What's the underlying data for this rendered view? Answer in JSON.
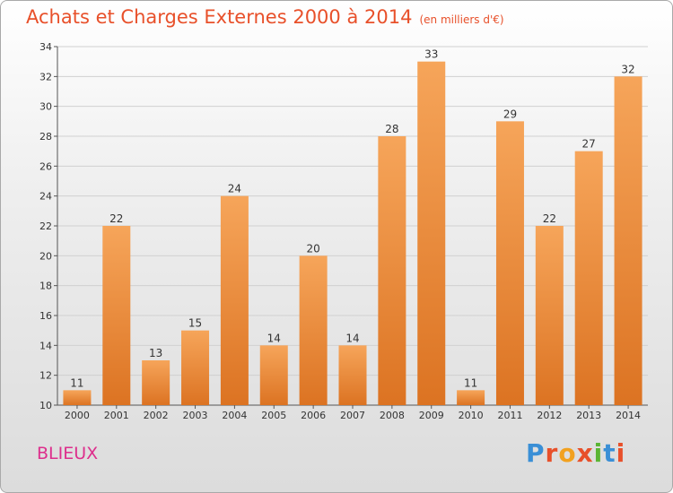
{
  "header": {
    "title": "Achats et Charges Externes 2000 à 2014",
    "unit": "(en milliers d'€)"
  },
  "footer": {
    "town": "BLIEUX",
    "brand": "Proxiti"
  },
  "colors": {
    "title": "#e8502a",
    "town": "#dd2e8c",
    "bar_top": "#f6a55a",
    "bar_bottom": "#dc7322"
  },
  "chart_data": {
    "type": "bar",
    "title": "Achats et Charges Externes 2000 à 2014",
    "subtitle": "(en milliers d'€)",
    "categories": [
      "2000",
      "2001",
      "2002",
      "2003",
      "2004",
      "2005",
      "2006",
      "2007",
      "2008",
      "2009",
      "2010",
      "2011",
      "2012",
      "2013",
      "2014"
    ],
    "values": [
      11,
      22,
      13,
      15,
      24,
      14,
      20,
      14,
      28,
      33,
      11,
      29,
      22,
      27,
      32
    ],
    "ylim": [
      10,
      34
    ],
    "yticks": [
      10,
      12,
      14,
      16,
      18,
      20,
      22,
      24,
      26,
      28,
      30,
      32,
      34
    ],
    "grid": true,
    "xlabel": "",
    "ylabel": ""
  }
}
